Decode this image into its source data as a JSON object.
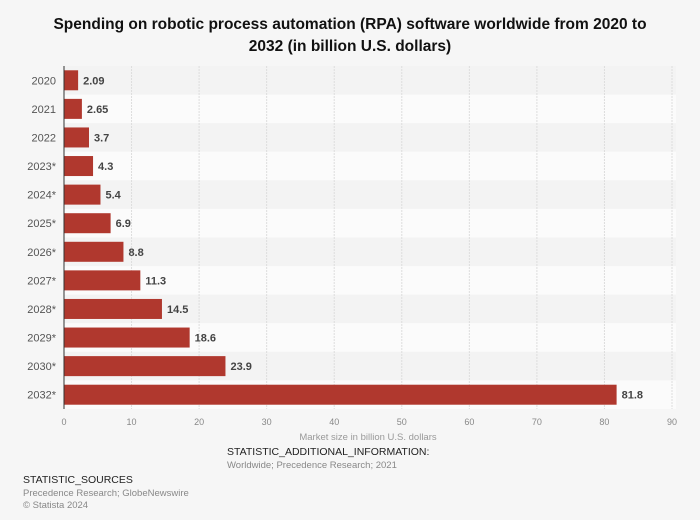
{
  "chart_data": {
    "type": "bar",
    "orientation": "horizontal",
    "title": "Spending on robotic process automation (RPA) software worldwide from 2020 to 2032 (in billion U.S. dollars)",
    "categories": [
      "2020",
      "2021",
      "2022",
      "2023*",
      "2024*",
      "2025*",
      "2026*",
      "2027*",
      "2028*",
      "2029*",
      "2030*",
      "2032*"
    ],
    "values": [
      2.09,
      2.65,
      3.7,
      4.3,
      5.4,
      6.9,
      8.8,
      11.3,
      14.5,
      18.6,
      23.9,
      81.8
    ],
    "data_labels": [
      "2.09",
      "2.65",
      "3.7",
      "4.3",
      "5.4",
      "6.9",
      "8.8",
      "11.3",
      "14.5",
      "18.6",
      "23.9",
      "81.8"
    ],
    "xlabel": "Market size in billion U.S. dollars",
    "ylabel": "",
    "xlim": [
      0,
      90
    ],
    "xticks": [
      0,
      10,
      20,
      30,
      40,
      50,
      60,
      70,
      80,
      90
    ],
    "grid": true,
    "bar_color": "#b0382e"
  },
  "footer": {
    "additional_info_heading": "STATISTIC_ADDITIONAL_INFORMATION:",
    "additional_info": "Worldwide; Precedence Research; 2021",
    "sources_heading": "STATISTIC_SOURCES",
    "sources": "Precedence Research; GlobeNewswire",
    "copyright": "© Statista 2024"
  }
}
